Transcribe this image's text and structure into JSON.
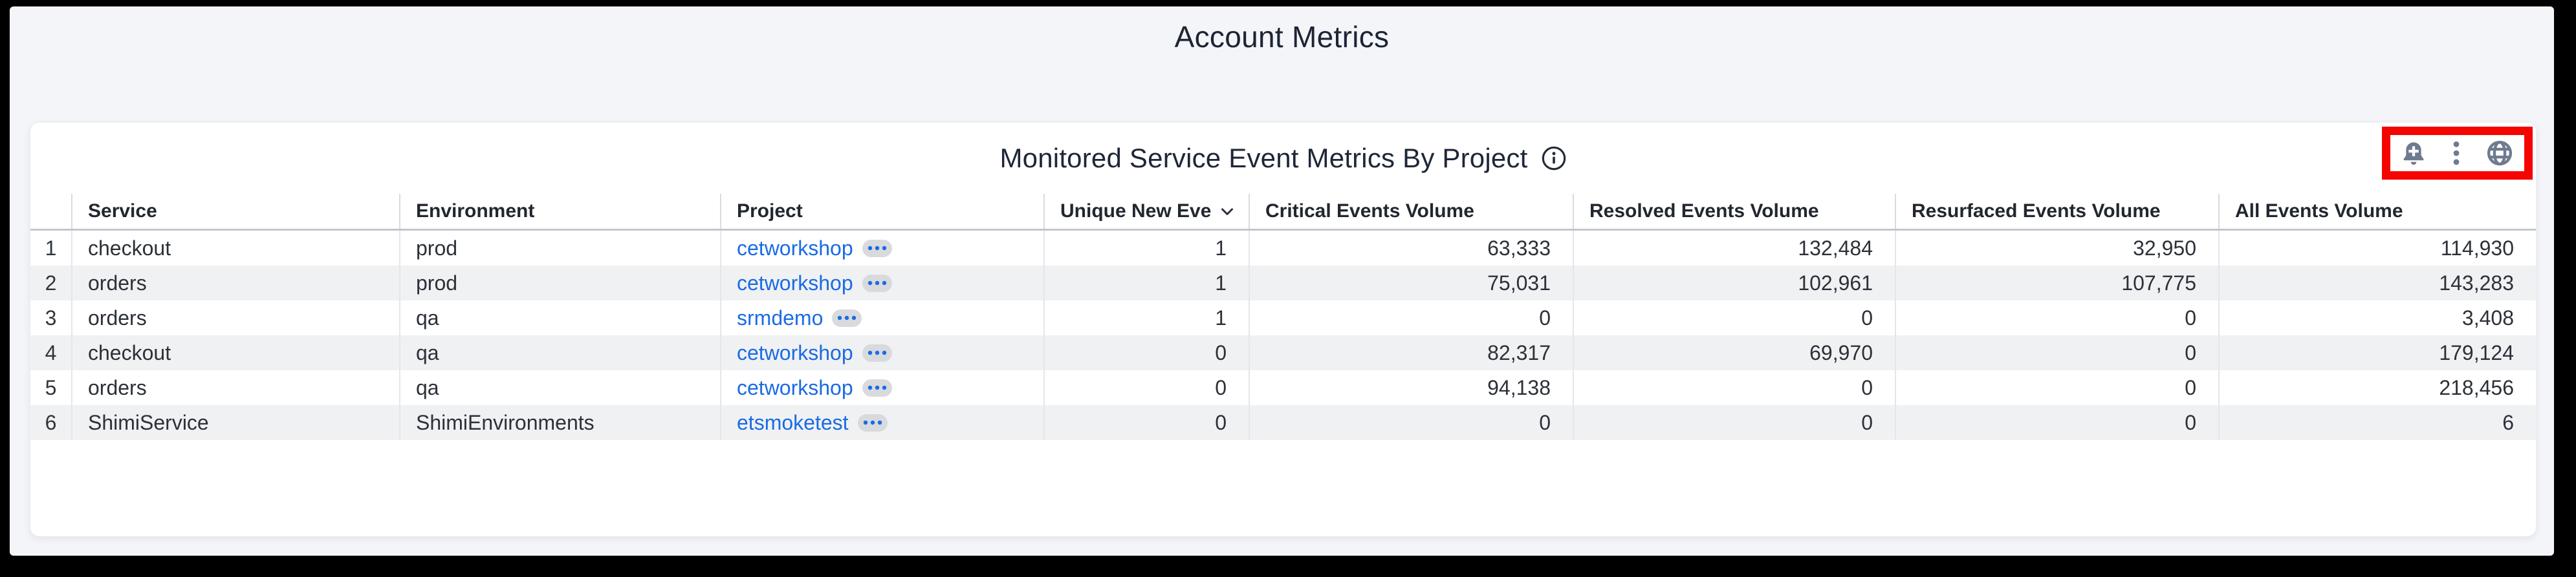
{
  "page": {
    "title": "Account Metrics"
  },
  "panel": {
    "title": "Monitored Service Event Metrics By Project",
    "info_icon": "info-icon",
    "toolbar": {
      "icons": [
        "bell-plus-icon",
        "kebab-menu-icon",
        "globe-icon"
      ],
      "highlight_color": "#f50400"
    }
  },
  "table": {
    "columns": [
      {
        "key": "num",
        "label": "",
        "align": "center"
      },
      {
        "key": "service",
        "label": "Service",
        "align": "left"
      },
      {
        "key": "environment",
        "label": "Environment",
        "align": "left"
      },
      {
        "key": "project",
        "label": "Project",
        "align": "left",
        "link": true
      },
      {
        "key": "unique",
        "label": "Unique New Ever",
        "align": "right",
        "sorted": "desc"
      },
      {
        "key": "critical",
        "label": "Critical Events Volume",
        "align": "right"
      },
      {
        "key": "resolved",
        "label": "Resolved Events Volume",
        "align": "right"
      },
      {
        "key": "resurfaced",
        "label": "Resurfaced Events Volume",
        "align": "right"
      },
      {
        "key": "all",
        "label": "All Events Volume",
        "align": "right"
      }
    ],
    "rows": [
      {
        "num": "1",
        "service": "checkout",
        "environment": "prod",
        "project": "cetworkshop",
        "unique": "1",
        "critical": "63,333",
        "resolved": "132,484",
        "resurfaced": "32,950",
        "all": "114,930"
      },
      {
        "num": "2",
        "service": "orders",
        "environment": "prod",
        "project": "cetworkshop",
        "unique": "1",
        "critical": "75,031",
        "resolved": "102,961",
        "resurfaced": "107,775",
        "all": "143,283"
      },
      {
        "num": "3",
        "service": "orders",
        "environment": "qa",
        "project": "srmdemo",
        "unique": "1",
        "critical": "0",
        "resolved": "0",
        "resurfaced": "0",
        "all": "3,408"
      },
      {
        "num": "4",
        "service": "checkout",
        "environment": "qa",
        "project": "cetworkshop",
        "unique": "0",
        "critical": "82,317",
        "resolved": "69,970",
        "resurfaced": "0",
        "all": "179,124"
      },
      {
        "num": "5",
        "service": "orders",
        "environment": "qa",
        "project": "cetworkshop",
        "unique": "0",
        "critical": "94,138",
        "resolved": "0",
        "resurfaced": "0",
        "all": "218,456"
      },
      {
        "num": "6",
        "service": "ShimiService",
        "environment": "ShimiEnvironments",
        "project": "etsmoketest",
        "unique": "0",
        "critical": "0",
        "resolved": "0",
        "resurfaced": "0",
        "all": "6"
      }
    ],
    "ellipsis_badge": "more-options"
  },
  "colors": {
    "link_blue": "#1a6be4",
    "highlight_red": "#f50400",
    "icon_slate": "#6e7b8f",
    "title_navy": "#1d2433",
    "row_alt_bg": "#f0f1f3"
  }
}
